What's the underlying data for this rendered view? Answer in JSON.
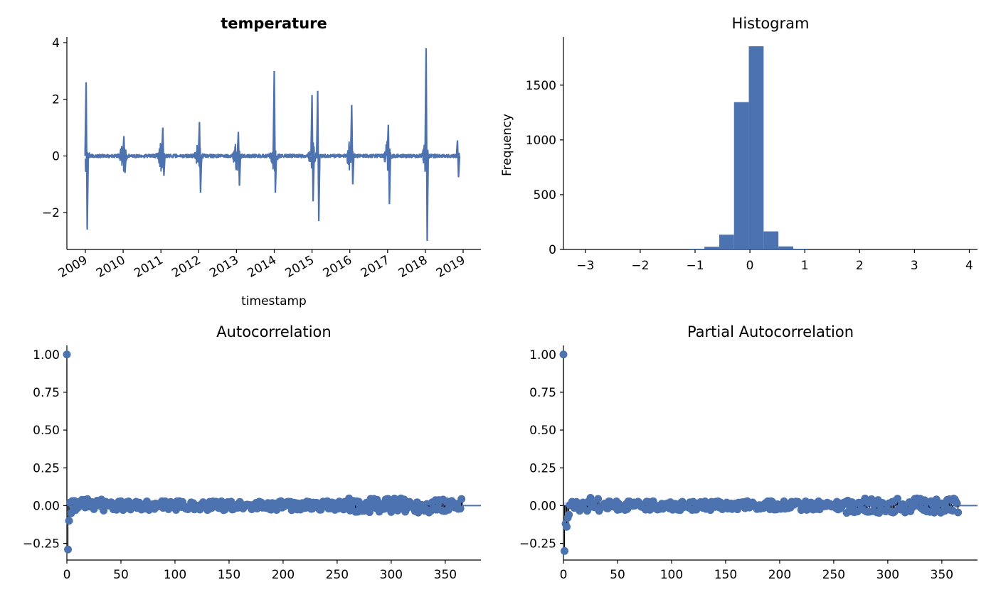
{
  "chart_data": [
    {
      "type": "line",
      "title": "temperature",
      "xlabel": "timestamp",
      "ylabel": "",
      "ylim": [
        -3.3,
        4.2
      ],
      "x_ticks": [
        "2009",
        "2010",
        "2011",
        "2012",
        "2013",
        "2014",
        "2015",
        "2016",
        "2017",
        "2018",
        "2019"
      ],
      "y_ticks": [
        4,
        2,
        0,
        -2
      ],
      "y_tick_labels": [
        "4",
        "2",
        "0",
        "−2"
      ],
      "series_color": "#4c72b0",
      "x": [
        "2009-01",
        "2010-01",
        "2011-01",
        "2012-01",
        "2013-01",
        "2014-01",
        "2015-01",
        "2016-01",
        "2017-01",
        "2018-01",
        "2018-11"
      ],
      "spikes": [
        {
          "year": 2009.02,
          "high": 2.6,
          "low": -2.6
        },
        {
          "year": 2010.02,
          "high": 0.7,
          "low": -0.6
        },
        {
          "year": 2011.05,
          "high": 1.0,
          "low": -0.7
        },
        {
          "year": 2012.02,
          "high": 1.2,
          "low": -1.3
        },
        {
          "year": 2013.05,
          "high": 0.85,
          "low": -1.05
        },
        {
          "year": 2014.0,
          "high": 3.0,
          "low": -1.3
        },
        {
          "year": 2015.0,
          "high": 2.15,
          "low": -1.6
        },
        {
          "year": 2015.15,
          "high": 2.3,
          "low": -2.3
        },
        {
          "year": 2016.05,
          "high": 1.8,
          "low": -1.0
        },
        {
          "year": 2017.02,
          "high": 1.1,
          "low": -1.7
        },
        {
          "year": 2018.02,
          "high": 3.8,
          "low": -3.0
        },
        {
          "year": 2018.85,
          "high": 0.55,
          "low": -0.75
        }
      ]
    },
    {
      "type": "bar",
      "title": "Histogram",
      "xlabel": "",
      "ylabel": "Frequency",
      "xlim": [
        -3.4,
        4.15
      ],
      "ylim": [
        0,
        1940
      ],
      "x_ticks": [
        -3,
        -2,
        -1,
        0,
        1,
        2,
        3,
        4
      ],
      "x_tick_labels": [
        "−3",
        "−2",
        "−1",
        "0",
        "1",
        "2",
        "3",
        "4"
      ],
      "y_ticks": [
        0,
        500,
        1000,
        1500
      ],
      "y_tick_labels": [
        "0",
        "500",
        "1000",
        "1500"
      ],
      "bin_edges": [
        -1.1,
        -0.83,
        -0.56,
        -0.29,
        -0.02,
        0.25,
        0.52,
        0.79,
        1.06
      ],
      "values": [
        6,
        25,
        135,
        1345,
        1855,
        165,
        28,
        6
      ],
      "bar_color": "#4c72b0"
    },
    {
      "type": "scatter",
      "title": "Autocorrelation",
      "xlabel": "",
      "ylabel": "",
      "xlim": [
        0,
        383
      ],
      "ylim": [
        -0.36,
        1.06
      ],
      "x_ticks": [
        0,
        50,
        100,
        150,
        200,
        250,
        300,
        350
      ],
      "x_tick_labels": [
        "0",
        "50",
        "100",
        "150",
        "200",
        "250",
        "300",
        "350"
      ],
      "y_ticks": [
        1.0,
        0.75,
        0.5,
        0.25,
        0.0,
        -0.25
      ],
      "y_tick_labels": [
        "1.00",
        "0.75",
        "0.50",
        "0.25",
        "0.00",
        "−0.25"
      ],
      "lags": 365,
      "first_values": [
        1.0,
        -0.29,
        -0.1,
        0.02,
        -0.05,
        0.03
      ],
      "noise_amplitude": 0.03,
      "marker_color": "#4c72b0"
    },
    {
      "type": "scatter",
      "title": "Partial Autocorrelation",
      "xlabel": "",
      "ylabel": "",
      "xlim": [
        0,
        383
      ],
      "ylim": [
        -0.36,
        1.06
      ],
      "x_ticks": [
        0,
        50,
        100,
        150,
        200,
        250,
        300,
        350
      ],
      "x_tick_labels": [
        "0",
        "50",
        "100",
        "150",
        "200",
        "250",
        "300",
        "350"
      ],
      "y_ticks": [
        1.0,
        0.75,
        0.5,
        0.25,
        0.0,
        -0.25
      ],
      "y_tick_labels": [
        "1.00",
        "0.75",
        "0.50",
        "0.25",
        "0.00",
        "−0.25"
      ],
      "lags": 365,
      "first_values": [
        1.0,
        -0.3,
        -0.12,
        -0.14,
        -0.08,
        -0.06
      ],
      "noise_amplitude": 0.03,
      "marker_color": "#4c72b0"
    }
  ]
}
